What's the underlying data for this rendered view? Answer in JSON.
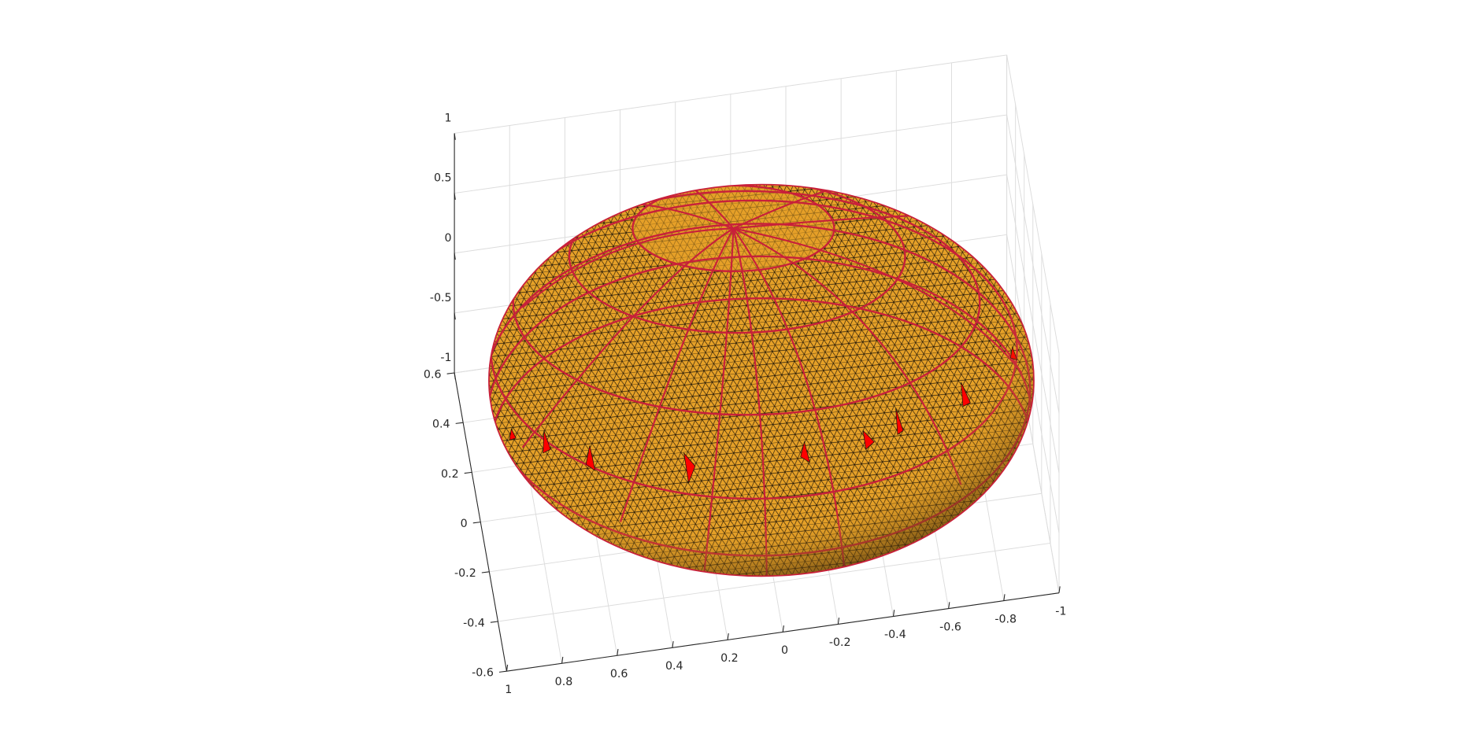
{
  "chart_data": {
    "type": "mesh3d",
    "xlim": [
      -1,
      1
    ],
    "xticks": [
      1,
      0.8,
      0.6,
      0.4,
      0.2,
      0,
      -0.2,
      -0.4,
      -0.6,
      -0.8,
      -1
    ],
    "ylim": [
      -0.6,
      0.6
    ],
    "yticks": [
      0.6,
      0.4,
      0.2,
      0,
      -0.2,
      -0.4,
      -0.6
    ],
    "zlim": [
      -1,
      1
    ],
    "zticks": [
      1,
      0.5,
      0,
      -0.5,
      -1
    ],
    "grid": true
  }
}
